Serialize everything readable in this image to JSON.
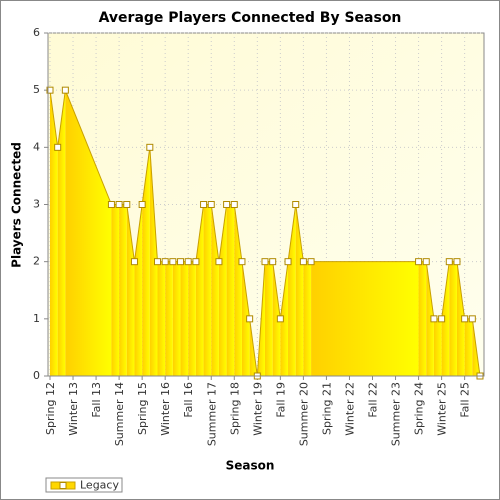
{
  "chart_data": {
    "type": "area",
    "title": "Average Players Connected By Season",
    "x_label": "Season",
    "y_label": "Players Connected",
    "categories": [
      "Spring 12",
      null,
      null,
      "Winter 13",
      null,
      null,
      "Fall 13",
      null,
      null,
      "Summer 14",
      null,
      null,
      "Spring 15",
      null,
      null,
      "Winter 16",
      null,
      null,
      "Fall 16",
      null,
      null,
      "Summer 17",
      null,
      null,
      "Spring 18",
      null,
      null,
      "Winter 19",
      null,
      null,
      "Fall 19",
      null,
      null,
      "Summer 20",
      null,
      null,
      "Spring 21",
      null,
      null,
      "Winter 22",
      null,
      null,
      "Fall 22",
      null,
      null,
      "Summer 23",
      null,
      null,
      "Spring 24",
      null,
      null,
      "Winter 25",
      null,
      null,
      "Fall 25",
      null,
      null
    ],
    "series": [
      {
        "name": "Legacy",
        "color": "#ffd700",
        "values": [
          5,
          4,
          5,
          null,
          null,
          null,
          null,
          null,
          3,
          3,
          3,
          2,
          3,
          4,
          2,
          2,
          2,
          2,
          2,
          2,
          3,
          3,
          2,
          3,
          3,
          2,
          1,
          0,
          2,
          2,
          1,
          2,
          3,
          2,
          2,
          null,
          null,
          null,
          null,
          null,
          null,
          null,
          null,
          null,
          null,
          null,
          null,
          null,
          2,
          2,
          1,
          1,
          2,
          2,
          1,
          1,
          0
        ]
      }
    ],
    "ylim": [
      0,
      6
    ],
    "yticks": [
      0,
      1,
      2,
      3,
      4,
      5,
      6
    ],
    "grid": true,
    "legend": "bottom-left"
  }
}
